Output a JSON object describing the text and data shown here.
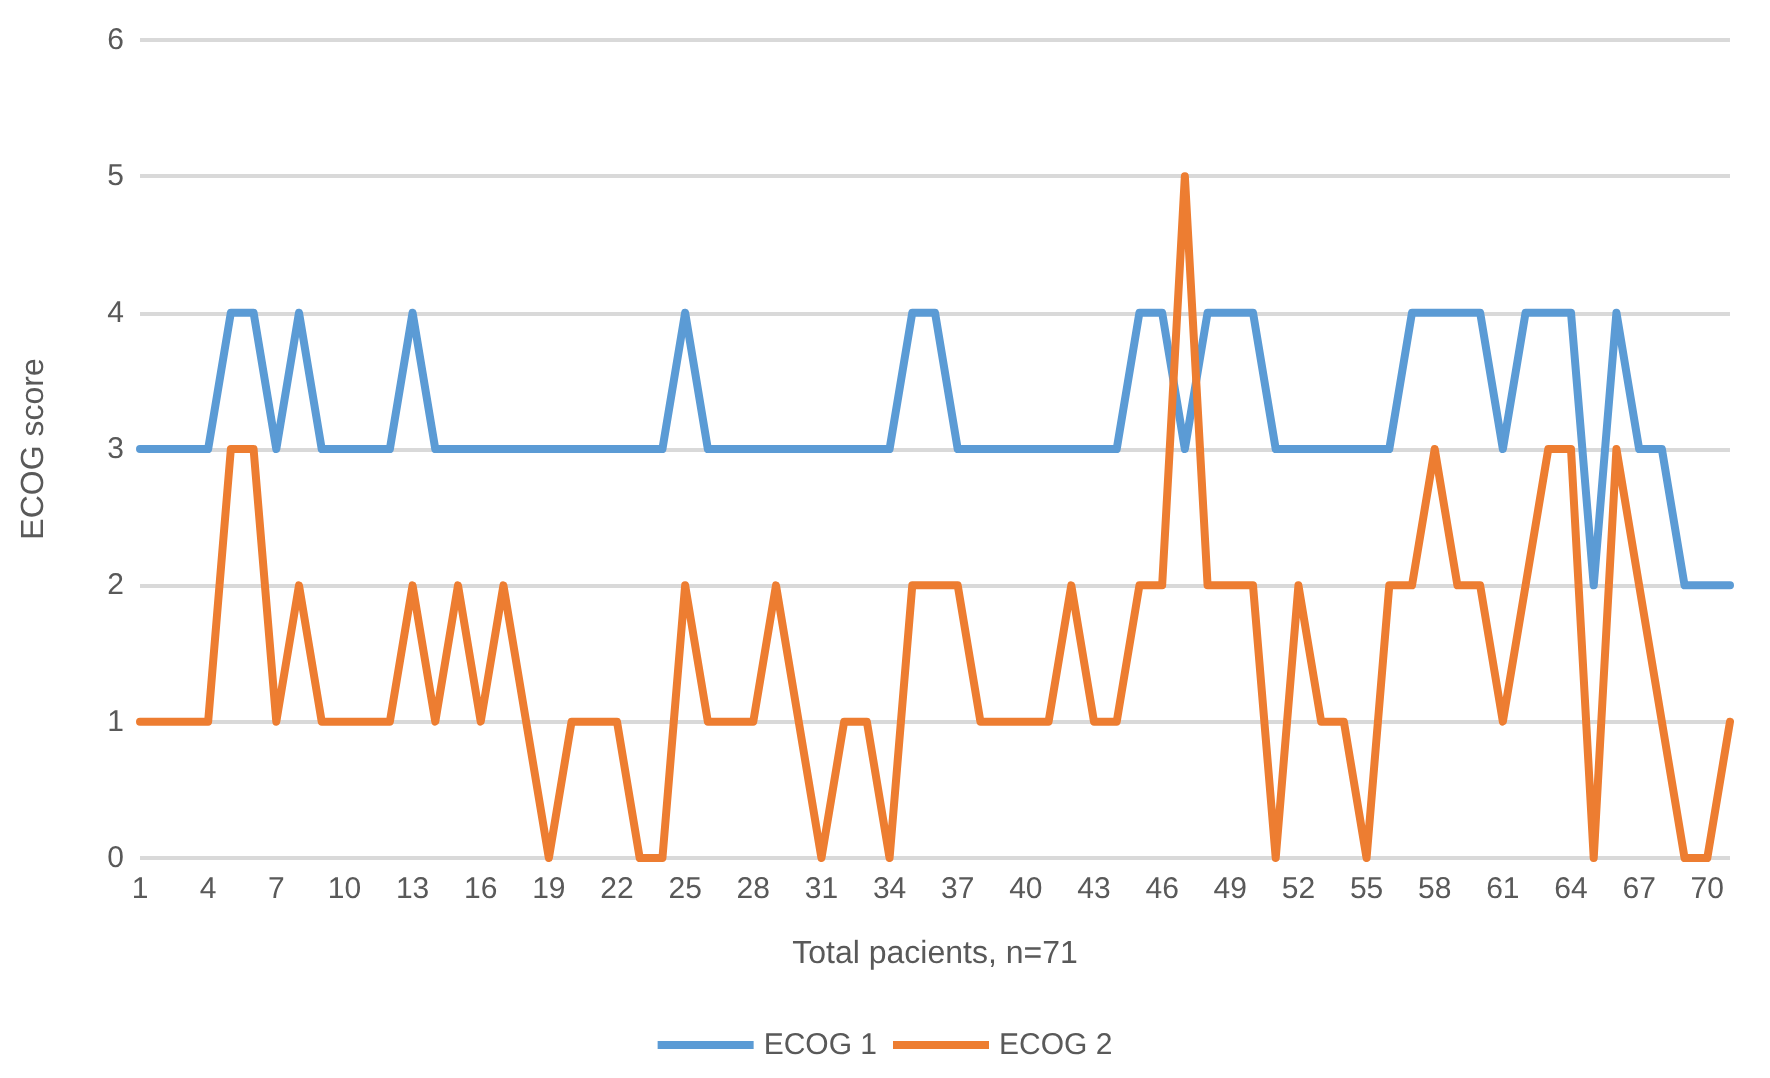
{
  "chart_data": {
    "type": "line",
    "xlabel": "Total pacients, n=71",
    "ylabel": "ECOG score",
    "categories": [
      "1",
      null,
      null,
      "4",
      null,
      null,
      "7",
      null,
      null,
      "10",
      null,
      null,
      "13",
      null,
      null,
      "16",
      null,
      null,
      "19",
      null,
      null,
      "22",
      null,
      null,
      "25",
      null,
      null,
      "28",
      null,
      null,
      "31",
      null,
      null,
      "34",
      null,
      null,
      "37",
      null,
      null,
      "40",
      null,
      null,
      "43",
      null,
      null,
      "46",
      null,
      null,
      "49",
      null,
      null,
      "52",
      null,
      null,
      "55",
      null,
      null,
      "58",
      null,
      null,
      "61",
      null,
      null,
      "64",
      null,
      null,
      "67",
      null,
      null,
      "70",
      null
    ],
    "series": [
      {
        "name": "ECOG 1",
        "color": "#5b9bd5",
        "values": [
          3,
          3,
          3,
          3,
          4,
          4,
          3,
          4,
          3,
          3,
          3,
          3,
          4,
          3,
          3,
          3,
          3,
          3,
          3,
          3,
          3,
          3,
          3,
          3,
          4,
          3,
          3,
          3,
          3,
          3,
          3,
          3,
          3,
          3,
          4,
          4,
          3,
          3,
          3,
          3,
          3,
          3,
          3,
          3,
          4,
          4,
          3,
          4,
          4,
          4,
          3,
          3,
          3,
          3,
          3,
          3,
          4,
          4,
          4,
          4,
          3,
          4,
          4,
          4,
          2,
          4,
          3,
          3,
          2,
          2,
          2
        ]
      },
      {
        "name": "ECOG 2",
        "color": "#ed7d31",
        "values": [
          1,
          1,
          1,
          1,
          3,
          3,
          1,
          2,
          1,
          1,
          1,
          1,
          2,
          1,
          2,
          1,
          2,
          1,
          0,
          1,
          1,
          1,
          0,
          0,
          2,
          1,
          1,
          1,
          2,
          1,
          0,
          1,
          1,
          0,
          2,
          2,
          2,
          1,
          1,
          1,
          1,
          2,
          1,
          1,
          2,
          2,
          5,
          2,
          2,
          2,
          0,
          2,
          1,
          1,
          0,
          2,
          2,
          3,
          2,
          2,
          1,
          2,
          3,
          3,
          0,
          3,
          2,
          1,
          0,
          0,
          1
        ]
      }
    ],
    "ylim": [
      0,
      6
    ],
    "yticks": [
      0,
      1,
      2,
      3,
      4,
      5,
      6
    ],
    "grid": "y",
    "legend": "bottom",
    "marker": "none",
    "line_style": "solid"
  }
}
